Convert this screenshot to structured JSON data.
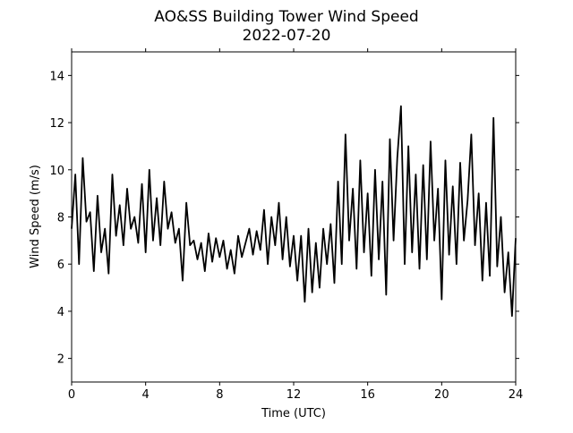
{
  "chart_data": {
    "type": "line",
    "title": "AO&SS Building Tower Wind Speed",
    "subtitle": "2022-07-20",
    "x_label": "Time (UTC)",
    "y_label": "Wind Speed (m/s)",
    "x": [
      0,
      0.2,
      0.4,
      0.6,
      0.8,
      1,
      1.2,
      1.4,
      1.6,
      1.8,
      2,
      2.2,
      2.4,
      2.6,
      2.8,
      3,
      3.2,
      3.4,
      3.6,
      3.8,
      4,
      4.2,
      4.4,
      4.6,
      4.8,
      5,
      5.2,
      5.4,
      5.6,
      5.8,
      6,
      6.2,
      6.4,
      6.6,
      6.8,
      7,
      7.2,
      7.4,
      7.6,
      7.8,
      8,
      8.2,
      8.4,
      8.6,
      8.8,
      9,
      9.2,
      9.4,
      9.6,
      9.8,
      10,
      10.2,
      10.4,
      10.6,
      10.8,
      11,
      11.2,
      11.4,
      11.6,
      11.8,
      12,
      12.2,
      12.4,
      12.6,
      12.8,
      13,
      13.2,
      13.4,
      13.6,
      13.8,
      14,
      14.2,
      14.4,
      14.6,
      14.8,
      15,
      15.2,
      15.4,
      15.6,
      15.8,
      16,
      16.2,
      16.4,
      16.6,
      16.8,
      17,
      17.2,
      17.4,
      17.6,
      17.8,
      18,
      18.2,
      18.4,
      18.6,
      18.8,
      19,
      19.2,
      19.4,
      19.6,
      19.8,
      20,
      20.2,
      20.4,
      20.6,
      20.8,
      21,
      21.2,
      21.4,
      21.6,
      21.8,
      22,
      22.2,
      22.4,
      22.6,
      22.8,
      23,
      23.2,
      23.4,
      23.6,
      23.8,
      24
    ],
    "series": [
      {
        "name": "Wind Speed",
        "color": "#000000",
        "values": [
          7.5,
          9.8,
          6.0,
          10.5,
          7.8,
          8.2,
          5.7,
          8.9,
          6.5,
          7.5,
          5.6,
          9.8,
          7.2,
          8.5,
          6.8,
          9.2,
          7.5,
          8.0,
          6.9,
          9.4,
          6.5,
          10.0,
          7.0,
          8.8,
          6.8,
          9.5,
          7.5,
          8.2,
          6.9,
          7.5,
          5.3,
          8.6,
          6.8,
          7.0,
          6.2,
          6.9,
          5.7,
          7.3,
          6.1,
          7.1,
          6.3,
          7.0,
          5.8,
          6.6,
          5.6,
          7.2,
          6.3,
          6.9,
          7.5,
          6.4,
          7.4,
          6.6,
          8.3,
          6.0,
          8.0,
          6.8,
          8.6,
          6.2,
          8.0,
          5.9,
          7.2,
          5.3,
          7.2,
          4.4,
          7.5,
          4.8,
          6.9,
          5.0,
          7.5,
          6.0,
          7.7,
          5.2,
          9.5,
          6.0,
          11.5,
          7.0,
          9.2,
          5.8,
          10.4,
          6.5,
          9.0,
          5.5,
          10.0,
          6.2,
          9.5,
          4.7,
          11.3,
          7.0,
          10.5,
          12.7,
          6.0,
          11.0,
          6.5,
          9.8,
          5.8,
          10.2,
          6.2,
          11.2,
          7.0,
          9.2,
          4.5,
          10.4,
          6.4,
          9.3,
          6.0,
          10.3,
          7.0,
          8.7,
          11.5,
          6.8,
          9.0,
          5.3,
          8.6,
          5.5,
          12.2,
          5.9,
          8.0,
          4.8,
          6.5,
          3.8,
          7.1
        ]
      }
    ],
    "xlim": [
      0,
      24
    ],
    "xticks": [
      0,
      4,
      8,
      12,
      16,
      20,
      24
    ],
    "ylim": [
      1,
      15
    ],
    "yticks": [
      2,
      4,
      6,
      8,
      10,
      12,
      14
    ]
  }
}
